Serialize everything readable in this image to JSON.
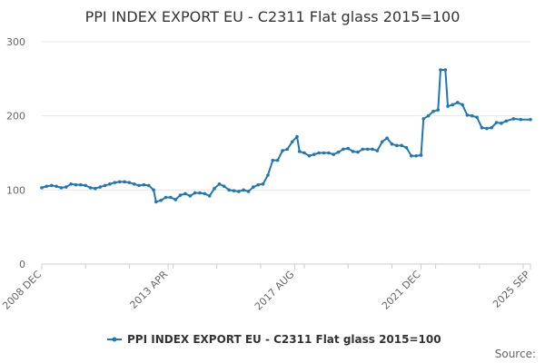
{
  "chart_data": {
    "type": "line",
    "title": "PPI INDEX EXPORT EU - C2311 Flat glass 2015=100",
    "xlabel": "",
    "ylabel": "",
    "ylim": [
      0,
      300
    ],
    "xlim": [
      "2008-12",
      "2025-09"
    ],
    "grid": true,
    "legend_placement": "bottom-center",
    "y_ticks": [
      0,
      100,
      200,
      300
    ],
    "x_tick_labels": [
      {
        "date": "2008-12",
        "label": "2008 DEC"
      },
      {
        "date": "2013-04",
        "label": "2013 APR"
      },
      {
        "date": "2017-08",
        "label": "2017 AUG"
      },
      {
        "date": "2021-12",
        "label": "2021 DEC"
      },
      {
        "date": "2025-09",
        "label": "2025 SEP"
      }
    ],
    "series": [
      {
        "name": "PPI INDEX EXPORT EU - C2311 Flat glass 2015=100",
        "color": "#1f77b4",
        "points": [
          [
            "2008-12",
            103
          ],
          [
            "2009-02",
            105
          ],
          [
            "2009-04",
            106
          ],
          [
            "2009-06",
            105
          ],
          [
            "2009-08",
            103
          ],
          [
            "2009-10",
            104
          ],
          [
            "2009-12",
            108
          ],
          [
            "2010-02",
            107
          ],
          [
            "2010-04",
            107
          ],
          [
            "2010-06",
            106
          ],
          [
            "2010-08",
            103
          ],
          [
            "2010-10",
            102
          ],
          [
            "2010-12",
            104
          ],
          [
            "2011-02",
            106
          ],
          [
            "2011-04",
            108
          ],
          [
            "2011-06",
            110
          ],
          [
            "2011-08",
            111
          ],
          [
            "2011-10",
            111
          ],
          [
            "2011-12",
            110
          ],
          [
            "2012-02",
            108
          ],
          [
            "2012-04",
            106
          ],
          [
            "2012-06",
            107
          ],
          [
            "2012-08",
            106
          ],
          [
            "2012-10",
            100
          ],
          [
            "2012-11",
            84
          ],
          [
            "2013-01",
            86
          ],
          [
            "2013-03",
            90
          ],
          [
            "2013-05",
            90
          ],
          [
            "2013-07",
            87
          ],
          [
            "2013-09",
            93
          ],
          [
            "2013-11",
            95
          ],
          [
            "2014-01",
            92
          ],
          [
            "2014-03",
            96
          ],
          [
            "2014-05",
            96
          ],
          [
            "2014-07",
            95
          ],
          [
            "2014-09",
            92
          ],
          [
            "2014-11",
            102
          ],
          [
            "2015-01",
            108
          ],
          [
            "2015-03",
            105
          ],
          [
            "2015-05",
            100
          ],
          [
            "2015-07",
            99
          ],
          [
            "2015-09",
            98
          ],
          [
            "2015-11",
            100
          ],
          [
            "2016-01",
            98
          ],
          [
            "2016-03",
            104
          ],
          [
            "2016-05",
            107
          ],
          [
            "2016-07",
            108
          ],
          [
            "2016-09",
            120
          ],
          [
            "2016-11",
            140
          ],
          [
            "2017-01",
            140
          ],
          [
            "2017-03",
            153
          ],
          [
            "2017-05",
            155
          ],
          [
            "2017-07",
            165
          ],
          [
            "2017-09",
            172
          ],
          [
            "2017-10",
            152
          ],
          [
            "2017-12",
            150
          ],
          [
            "2018-02",
            146
          ],
          [
            "2018-04",
            148
          ],
          [
            "2018-06",
            150
          ],
          [
            "2018-08",
            150
          ],
          [
            "2018-10",
            150
          ],
          [
            "2018-12",
            148
          ],
          [
            "2019-02",
            151
          ],
          [
            "2019-04",
            155
          ],
          [
            "2019-06",
            156
          ],
          [
            "2019-08",
            152
          ],
          [
            "2019-10",
            151
          ],
          [
            "2019-12",
            155
          ],
          [
            "2020-02",
            155
          ],
          [
            "2020-04",
            155
          ],
          [
            "2020-06",
            153
          ],
          [
            "2020-08",
            165
          ],
          [
            "2020-10",
            170
          ],
          [
            "2020-12",
            162
          ],
          [
            "2021-02",
            160
          ],
          [
            "2021-04",
            160
          ],
          [
            "2021-06",
            157
          ],
          [
            "2021-08",
            146
          ],
          [
            "2021-10",
            146
          ],
          [
            "2021-12",
            147
          ],
          [
            "2022-01",
            196
          ],
          [
            "2022-03",
            200
          ],
          [
            "2022-05",
            206
          ],
          [
            "2022-07",
            208
          ],
          [
            "2022-08",
            262
          ],
          [
            "2022-10",
            262
          ],
          [
            "2022-11",
            213
          ],
          [
            "2023-01",
            215
          ],
          [
            "2023-03",
            218
          ],
          [
            "2023-05",
            215
          ],
          [
            "2023-07",
            201
          ],
          [
            "2023-09",
            200
          ],
          [
            "2023-11",
            198
          ],
          [
            "2024-01",
            184
          ],
          [
            "2024-03",
            183
          ],
          [
            "2024-05",
            184
          ],
          [
            "2024-07",
            191
          ],
          [
            "2024-09",
            190
          ],
          [
            "2024-11",
            193
          ],
          [
            "2025-02",
            196
          ],
          [
            "2025-05",
            195
          ],
          [
            "2025-09",
            195
          ]
        ]
      }
    ],
    "source_label": "Source:"
  }
}
